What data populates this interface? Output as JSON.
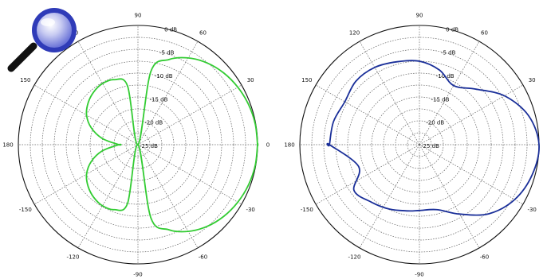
{
  "chart_data": [
    {
      "type": "polar-line",
      "angle_unit": "deg",
      "angle_ticks": [
        0,
        30,
        60,
        90,
        120,
        150,
        180,
        -150,
        -120,
        -90,
        -60,
        -30
      ],
      "angle_tick_labels": [
        "0",
        "30",
        "60",
        "90",
        "120",
        "150",
        "180",
        "-150",
        "-120",
        "-90",
        "-60",
        "-30"
      ],
      "radial_ticks_db": [
        0,
        -5,
        -10,
        -15,
        -20,
        -25
      ],
      "radial_tick_labels": [
        "0 dB",
        "-5 dB",
        "-10 dB",
        "-15 dB",
        "-20 dB",
        "-25 dB"
      ],
      "rlim_db": [
        -25,
        0
      ],
      "grid": true,
      "series": [
        {
          "color": "#33cc33",
          "theta_deg": [
            0,
            10,
            20,
            30,
            40,
            50,
            60,
            70,
            80,
            90,
            100,
            110,
            120,
            130,
            140,
            150,
            160,
            170,
            180
          ],
          "r_db": [
            0,
            -0.1,
            -0.4,
            -0.9,
            -1.6,
            -2.6,
            -4.0,
            -6.0,
            -9.4,
            -25,
            -12.5,
            -10.5,
            -10.2,
            -10.6,
            -11.4,
            -12.6,
            -14.6,
            -17.4,
            -21
          ]
        }
      ]
    },
    {
      "type": "polar-line",
      "angle_unit": "deg",
      "angle_ticks": [
        0,
        30,
        60,
        90,
        120,
        150,
        180,
        -150,
        -120,
        -90,
        -60,
        -30
      ],
      "angle_tick_labels": [
        "0",
        "30",
        "60",
        "90",
        "120",
        "150",
        "180",
        "-150",
        "-120",
        "-90",
        "-60",
        "-30"
      ],
      "radial_ticks_db": [
        0,
        -5,
        -10,
        -15,
        -20,
        -25
      ],
      "radial_tick_labels": [
        "0 dB",
        "-5 dB",
        "-10 dB",
        "-15 dB",
        "-20 dB",
        "-25 dB"
      ],
      "rlim_db": [
        -25,
        0
      ],
      "grid": true,
      "series": [
        {
          "color": "#1a2f99",
          "theta_deg": [
            -180,
            -160,
            -145,
            -130,
            -115,
            -100,
            -90,
            -75,
            -60,
            -45,
            -30,
            -15,
            0,
            15,
            30,
            45,
            60,
            75,
            90,
            105,
            120,
            135,
            150,
            165,
            180
          ],
          "r_db": [
            -6.2,
            -11.5,
            -8.3,
            -9.3,
            -10.1,
            -10.9,
            -11.2,
            -10.9,
            -8.2,
            -4.5,
            -2.0,
            -0.6,
            0,
            -1.4,
            -4.5,
            -8.5,
            -10.7,
            -8.8,
            -7.5,
            -7.0,
            -6.3,
            -6.2,
            -7.0,
            -6.4,
            -6.2
          ]
        }
      ]
    }
  ],
  "icons": {
    "zoom": "magnifier-icon"
  },
  "colors": {
    "lens": "#3b46c8",
    "handle": "#111111"
  }
}
